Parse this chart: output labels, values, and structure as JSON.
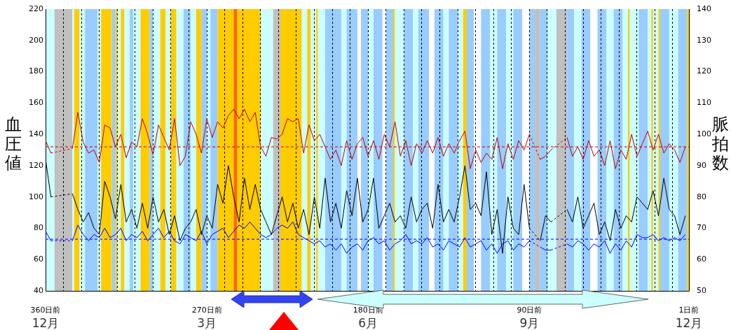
{
  "chart_data": {
    "type": "line",
    "ylabel": "血圧値",
    "y2label": "脈拍数",
    "x": [
      -360,
      -357,
      -354,
      -351,
      -348,
      -345,
      -342,
      -339,
      -336,
      -333,
      -330,
      -327,
      -324,
      -321,
      -318,
      -315,
      -312,
      -309,
      -306,
      -303,
      -300,
      -297,
      -294,
      -291,
      -288,
      -285,
      -282,
      -279,
      -276,
      -273,
      -270,
      -267,
      -264,
      -261,
      -258,
      -255,
      -252,
      -249,
      -246,
      -243,
      -240,
      -237,
      -234,
      -231,
      -228,
      -225,
      -222,
      -219,
      -216,
      -213,
      -210,
      -207,
      -204,
      -201,
      -198,
      -195,
      -192,
      -189,
      -186,
      -183,
      -180,
      -177,
      -174,
      -171,
      -168,
      -165,
      -162,
      -159,
      -156,
      -153,
      -150,
      -147,
      -144,
      -141,
      -138,
      -135,
      -132,
      -129,
      -126,
      -123,
      -120,
      -117,
      -114,
      -111,
      -108,
      -105,
      -102,
      -99,
      -96,
      -93,
      -90,
      -87,
      -84,
      -81,
      -78,
      -75,
      -72,
      -69,
      -66,
      -63,
      -60,
      -57,
      -54,
      -51,
      -48,
      -45,
      -42,
      -39,
      -36,
      -33,
      -30,
      -27,
      -24,
      -21,
      -18,
      -15,
      -12,
      -9,
      -6,
      -3
    ],
    "series": [
      {
        "color": "#c00000",
        "values": [
          136,
          128,
          null,
          null,
          null,
          131,
          154,
          135,
          128,
          130,
          122,
          146,
          144,
          132,
          140,
          125,
          135,
          132,
          150,
          140,
          127,
          146,
          138,
          130,
          150,
          120,
          126,
          148,
          140,
          128,
          150,
          138,
          148,
          144,
          152,
          156,
          150,
          156,
          148,
          154,
          132,
          126,
          138,
          137,
          140,
          150,
          148,
          150,
          128,
          146,
          136,
          140,
          132,
          124,
          130,
          120,
          136,
          124,
          134,
          138,
          126,
          136,
          124,
          140,
          132,
          148,
          126,
          136,
          120,
          134,
          128,
          136,
          128,
          138,
          126,
          134,
          128,
          136,
          142,
          118,
          130,
          122,
          128,
          124,
          138,
          118,
          134,
          124,
          136,
          130,
          140,
          null,
          124,
          126,
          130,
          null,
          null,
          138,
          126,
          132,
          124,
          136,
          126,
          130,
          120,
          136,
          118,
          130,
          124,
          140,
          126,
          134,
          142,
          130,
          140,
          128,
          134,
          130,
          122,
          132
        ]
      },
      {
        "color": "#000000",
        "axis": "y2",
        "values": [
          92,
          80,
          null,
          null,
          null,
          81,
          76,
          72,
          75,
          70,
          68,
          85,
          80,
          73,
          84,
          72,
          76,
          70,
          78,
          70,
          80,
          72,
          76,
          68,
          74,
          66,
          70,
          72,
          76,
          68,
          74,
          70,
          84,
          78,
          90,
          80,
          72,
          86,
          76,
          84,
          76,
          72,
          68,
          74,
          80,
          72,
          78,
          70,
          76,
          68,
          80,
          70,
          86,
          72,
          78,
          70,
          82,
          74,
          86,
          72,
          76,
          86,
          70,
          74,
          78,
          72,
          74,
          70,
          80,
          72,
          76,
          78,
          70,
          84,
          72,
          76,
          72,
          80,
          90,
          76,
          78,
          74,
          88,
          68,
          76,
          62,
          80,
          70,
          68,
          84,
          70,
          null,
          66,
          74,
          72,
          null,
          null,
          76,
          72,
          80,
          70,
          74,
          78,
          68,
          72,
          66,
          76,
          70,
          74,
          72,
          80,
          78,
          76,
          82,
          74,
          86,
          76,
          74,
          68,
          74
        ]
      },
      {
        "color": "#0000ff",
        "values": [
          78,
          72,
          null,
          null,
          null,
          72,
          82,
          76,
          72,
          76,
          74,
          80,
          74,
          76,
          80,
          72,
          76,
          74,
          78,
          72,
          76,
          80,
          74,
          78,
          72,
          70,
          76,
          74,
          72,
          78,
          70,
          76,
          78,
          80,
          74,
          78,
          82,
          80,
          84,
          80,
          76,
          74,
          76,
          80,
          82,
          80,
          84,
          76,
          74,
          72,
          70,
          72,
          68,
          70,
          66,
          70,
          64,
          68,
          70,
          66,
          72,
          74,
          70,
          72,
          66,
          70,
          72,
          76,
          70,
          72,
          70,
          74,
          68,
          70,
          66,
          72,
          70,
          68,
          74,
          68,
          70,
          72,
          66,
          70,
          64,
          70,
          72,
          66,
          70,
          68,
          72,
          null,
          68,
          66,
          66,
          null,
          null,
          70,
          68,
          72,
          70,
          66,
          70,
          68,
          72,
          64,
          70,
          66,
          72,
          68,
          76,
          74,
          74,
          76,
          72,
          74,
          72,
          74,
          72,
          76
        ]
      }
    ],
    "xlim": [
      -360,
      -1
    ],
    "xticks": [
      {
        "value": -360,
        "label": "360日前"
      },
      {
        "value": -350,
        "label": null
      },
      {
        "value": -340,
        "label": null
      },
      {
        "value": -330,
        "label": null
      },
      {
        "value": -320,
        "label": null
      },
      {
        "value": -310,
        "label": null
      },
      {
        "value": -300,
        "label": null
      },
      {
        "value": -290,
        "label": null
      },
      {
        "value": -280,
        "label": null
      },
      {
        "value": -270,
        "label": "270日前"
      },
      {
        "value": -260,
        "label": null
      },
      {
        "value": -250,
        "label": null
      },
      {
        "value": -240,
        "label": null
      },
      {
        "value": -230,
        "label": null
      },
      {
        "value": -220,
        "label": null
      },
      {
        "value": -210,
        "label": null
      },
      {
        "value": -200,
        "label": null
      },
      {
        "value": -190,
        "label": null
      },
      {
        "value": -180,
        "label": "180日前"
      },
      {
        "value": -170,
        "label": null
      },
      {
        "value": -160,
        "label": null
      },
      {
        "value": -150,
        "label": null
      },
      {
        "value": -140,
        "label": null
      },
      {
        "value": -130,
        "label": null
      },
      {
        "value": -120,
        "label": null
      },
      {
        "value": -110,
        "label": null
      },
      {
        "value": -100,
        "label": null
      },
      {
        "value": -90,
        "label": "90日前"
      },
      {
        "value": -80,
        "label": null
      },
      {
        "value": -70,
        "label": null
      },
      {
        "value": -60,
        "label": null
      },
      {
        "value": -50,
        "label": null
      },
      {
        "value": -40,
        "label": null
      },
      {
        "value": -30,
        "label": null
      },
      {
        "value": -20,
        "label": null
      },
      {
        "value": -10,
        "label": null
      },
      {
        "value": -1,
        "label": "1日前"
      }
    ],
    "ylim": [
      40,
      220
    ],
    "yticks": [
      40,
      60,
      80,
      100,
      120,
      140,
      160,
      180,
      200,
      220
    ],
    "y2lim": [
      50,
      140
    ],
    "y2ticks": [
      50,
      60,
      70,
      80,
      90,
      100,
      110,
      120,
      130,
      140
    ],
    "grid": "x",
    "legend": false,
    "marker": "none",
    "line_style": "solid",
    "ref_lines": [
      {
        "axis": "y",
        "value": 132,
        "color": "#c00000",
        "line_style": "dashed"
      },
      {
        "axis": "y",
        "value": 73,
        "color": "#0000ff",
        "line_style": "dashed"
      }
    ],
    "annotations": [
      "12月",
      "3月",
      "6月",
      "9月",
      "12月"
    ],
    "bands": [
      {
        "axis": "x",
        "from": -360,
        "to": -355,
        "color": "#ccffff"
      },
      {
        "axis": "x",
        "from": -355,
        "to": -345,
        "color": "#c0c0c0"
      },
      {
        "axis": "x",
        "from": -345,
        "to": -344,
        "color": "#ccffff"
      },
      {
        "axis": "x",
        "from": -344,
        "to": -341,
        "color": "#ffcc00"
      },
      {
        "axis": "x",
        "from": -341,
        "to": -338,
        "color": "#ccffff"
      },
      {
        "axis": "x",
        "from": -338,
        "to": -331,
        "color": "#99ccff"
      },
      {
        "axis": "x",
        "from": -331,
        "to": -329,
        "color": "#ccffff"
      },
      {
        "axis": "x",
        "from": -329,
        "to": -323,
        "color": "#ffcc00"
      },
      {
        "axis": "x",
        "from": -323,
        "to": -321,
        "color": "#99ccff"
      },
      {
        "axis": "x",
        "from": -321,
        "to": -320,
        "color": "#ffcc00"
      },
      {
        "axis": "x",
        "from": -320,
        "to": -318,
        "color": "#ccffff"
      },
      {
        "axis": "x",
        "from": -318,
        "to": -316,
        "color": "#ffcc00"
      },
      {
        "axis": "x",
        "from": -316,
        "to": -313,
        "color": "#ccffff"
      },
      {
        "axis": "x",
        "from": -313,
        "to": -311,
        "color": "#99ccff"
      },
      {
        "axis": "x",
        "from": -311,
        "to": -307,
        "color": "#ccffff"
      },
      {
        "axis": "x",
        "from": -307,
        "to": -302,
        "color": "#ffcc00"
      },
      {
        "axis": "x",
        "from": -302,
        "to": -300,
        "color": "#99ccff"
      },
      {
        "axis": "x",
        "from": -300,
        "to": -296,
        "color": "#ccffff"
      },
      {
        "axis": "x",
        "from": -296,
        "to": -293,
        "color": "#ffcc00"
      },
      {
        "axis": "x",
        "from": -293,
        "to": -290,
        "color": "#ccffff"
      },
      {
        "axis": "x",
        "from": -290,
        "to": -287,
        "color": "#ffcc00"
      },
      {
        "axis": "x",
        "from": -287,
        "to": -283,
        "color": "#ccffff"
      },
      {
        "axis": "x",
        "from": -283,
        "to": -279,
        "color": "#99ccff"
      },
      {
        "axis": "x",
        "from": -279,
        "to": -276,
        "color": "#ccffff"
      },
      {
        "axis": "x",
        "from": -276,
        "to": -273,
        "color": "#ffcc00"
      },
      {
        "axis": "x",
        "from": -273,
        "to": -270,
        "color": "#99ccff"
      },
      {
        "axis": "x",
        "from": -270,
        "to": -268,
        "color": "#ccffff"
      },
      {
        "axis": "x",
        "from": -268,
        "to": -264,
        "color": "#99ccff"
      },
      {
        "axis": "x",
        "from": -264,
        "to": -255,
        "color": "#ffcc00"
      },
      {
        "axis": "x",
        "from": -255,
        "to": -253,
        "color": "#ff6600"
      },
      {
        "axis": "x",
        "from": -253,
        "to": -240,
        "color": "#ffcc00"
      },
      {
        "axis": "x",
        "from": -240,
        "to": -233,
        "color": "#ccffff"
      },
      {
        "axis": "x",
        "from": -233,
        "to": -229,
        "color": "#c0c0c0"
      },
      {
        "axis": "x",
        "from": -229,
        "to": -217,
        "color": "#ffcc00"
      },
      {
        "axis": "x",
        "from": -217,
        "to": -214,
        "color": "#ccffff"
      },
      {
        "axis": "x",
        "from": -214,
        "to": -212,
        "color": "#ffcc00"
      },
      {
        "axis": "x",
        "from": -212,
        "to": -209,
        "color": "#ccffff"
      },
      {
        "axis": "x",
        "from": -209,
        "to": -208,
        "color": "#ffcc00"
      },
      {
        "axis": "x",
        "from": -208,
        "to": -204,
        "color": "#ccffff"
      },
      {
        "axis": "x",
        "from": -204,
        "to": -195,
        "color": "#99ccff"
      },
      {
        "axis": "x",
        "from": -195,
        "to": -192,
        "color": "#ccffff"
      },
      {
        "axis": "x",
        "from": -192,
        "to": -186,
        "color": "#99ccff"
      },
      {
        "axis": "x",
        "from": -186,
        "to": -184,
        "color": "#ffffff"
      },
      {
        "axis": "x",
        "from": -184,
        "to": -180,
        "color": "#99ccff"
      },
      {
        "axis": "x",
        "from": -180,
        "to": -177,
        "color": "#ccffff"
      },
      {
        "axis": "x",
        "from": -177,
        "to": -172,
        "color": "#99ccff"
      },
      {
        "axis": "x",
        "from": -172,
        "to": -170,
        "color": "#ffffff"
      },
      {
        "axis": "x",
        "from": -170,
        "to": -166,
        "color": "#99ccff"
      },
      {
        "axis": "x",
        "from": -166,
        "to": -165,
        "color": "#ffcc00"
      },
      {
        "axis": "x",
        "from": -165,
        "to": -160,
        "color": "#ccffff"
      },
      {
        "axis": "x",
        "from": -160,
        "to": -155,
        "color": "#99ccff"
      },
      {
        "axis": "x",
        "from": -155,
        "to": -152,
        "color": "#ccffff"
      },
      {
        "axis": "x",
        "from": -152,
        "to": -146,
        "color": "#99ccff"
      },
      {
        "axis": "x",
        "from": -146,
        "to": -143,
        "color": "#ffffff"
      },
      {
        "axis": "x",
        "from": -143,
        "to": -138,
        "color": "#99ccff"
      },
      {
        "axis": "x",
        "from": -138,
        "to": -135,
        "color": "#ccffff"
      },
      {
        "axis": "x",
        "from": -135,
        "to": -130,
        "color": "#99ccff"
      },
      {
        "axis": "x",
        "from": -130,
        "to": -127,
        "color": "#ccffff"
      },
      {
        "axis": "x",
        "from": -127,
        "to": -125,
        "color": "#ffcc00"
      },
      {
        "axis": "x",
        "from": -125,
        "to": -121,
        "color": "#99ccff"
      },
      {
        "axis": "x",
        "from": -121,
        "to": -117,
        "color": "#ffffff"
      },
      {
        "axis": "x",
        "from": -117,
        "to": -112,
        "color": "#99ccff"
      },
      {
        "axis": "x",
        "from": -112,
        "to": -108,
        "color": "#ccffff"
      },
      {
        "axis": "x",
        "from": -108,
        "to": -103,
        "color": "#99ccff"
      },
      {
        "axis": "x",
        "from": -103,
        "to": -99,
        "color": "#ccffff"
      },
      {
        "axis": "x",
        "from": -99,
        "to": -94,
        "color": "#99ccff"
      },
      {
        "axis": "x",
        "from": -94,
        "to": -90,
        "color": "#ffffff"
      },
      {
        "axis": "x",
        "from": -90,
        "to": -87,
        "color": "#99ccff"
      },
      {
        "axis": "x",
        "from": -87,
        "to": -84,
        "color": "#c0c0c0"
      },
      {
        "axis": "x",
        "from": -84,
        "to": -80,
        "color": "#99ccff"
      },
      {
        "axis": "x",
        "from": -80,
        "to": -75,
        "color": "#ccffff"
      },
      {
        "axis": "x",
        "from": -75,
        "to": -69,
        "color": "#c0c0c0"
      },
      {
        "axis": "x",
        "from": -69,
        "to": -65,
        "color": "#99ccff"
      },
      {
        "axis": "x",
        "from": -65,
        "to": -61,
        "color": "#ccffff"
      },
      {
        "axis": "x",
        "from": -61,
        "to": -56,
        "color": "#99ccff"
      },
      {
        "axis": "x",
        "from": -56,
        "to": -52,
        "color": "#ffffff"
      },
      {
        "axis": "x",
        "from": -52,
        "to": -47,
        "color": "#99ccff"
      },
      {
        "axis": "x",
        "from": -47,
        "to": -43,
        "color": "#ccffff"
      },
      {
        "axis": "x",
        "from": -43,
        "to": -38,
        "color": "#99ccff"
      },
      {
        "axis": "x",
        "from": -38,
        "to": -35,
        "color": "#ccffff"
      },
      {
        "axis": "x",
        "from": -35,
        "to": -34,
        "color": "#ffcc00"
      },
      {
        "axis": "x",
        "from": -34,
        "to": -29,
        "color": "#ccffff"
      },
      {
        "axis": "x",
        "from": -29,
        "to": -24,
        "color": "#99ccff"
      },
      {
        "axis": "x",
        "from": -24,
        "to": -22,
        "color": "#ccffff"
      },
      {
        "axis": "x",
        "from": -22,
        "to": -21,
        "color": "#ffcc00"
      },
      {
        "axis": "x",
        "from": -21,
        "to": -18,
        "color": "#ccffff"
      },
      {
        "axis": "x",
        "from": -18,
        "to": -17,
        "color": "#ffcc00"
      },
      {
        "axis": "x",
        "from": -17,
        "to": -12,
        "color": "#99ccff"
      },
      {
        "axis": "x",
        "from": -12,
        "to": -7,
        "color": "#ccffff"
      },
      {
        "axis": "x",
        "from": -7,
        "to": -2,
        "color": "#99ccff"
      },
      {
        "axis": "x",
        "from": -2,
        "to": -1,
        "color": "#ffcc00"
      }
    ]
  }
}
